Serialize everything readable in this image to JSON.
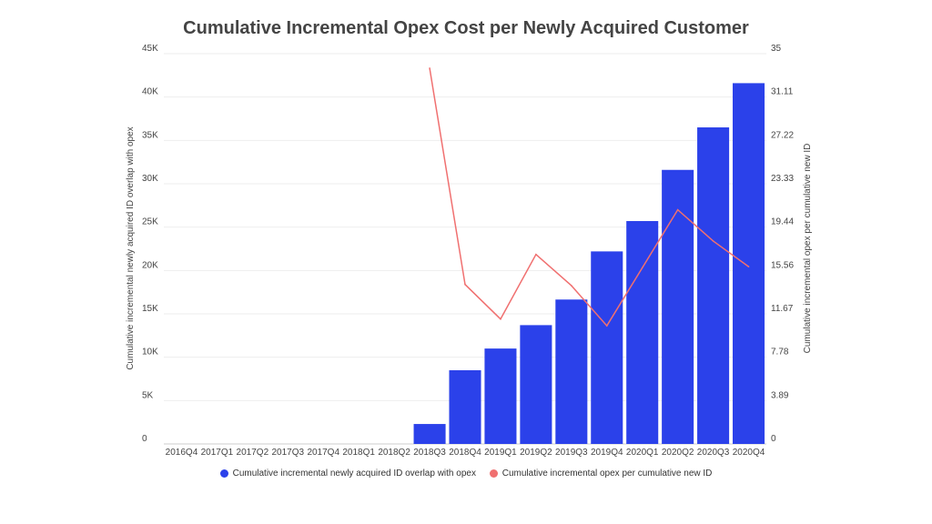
{
  "chart_data": {
    "type": "bar",
    "title": "Cumulative Incremental Opex Cost per Newly Acquired Customer",
    "categories": [
      "2016Q4",
      "2017Q1",
      "2017Q2",
      "2017Q3",
      "2017Q4",
      "2018Q1",
      "2018Q2",
      "2018Q3",
      "2018Q4",
      "2019Q1",
      "2019Q2",
      "2019Q3",
      "2019Q4",
      "2020Q1",
      "2020Q2",
      "2020Q3",
      "2020Q4"
    ],
    "series": [
      {
        "name": "Cumulative incremental newly acquired ID overlap with opex",
        "type": "bar",
        "axis": "left",
        "color": "#2b41ea",
        "values": [
          null,
          null,
          null,
          null,
          null,
          null,
          null,
          2300,
          8500,
          11000,
          13700,
          16650,
          22200,
          25700,
          31600,
          36500,
          41600
        ]
      },
      {
        "name": "Cumulative incremental opex per cumulative new ID",
        "type": "line",
        "axis": "right",
        "color": "#f07070",
        "values": [
          null,
          null,
          null,
          null,
          null,
          null,
          null,
          33.7,
          14.3,
          11.2,
          17.0,
          14.2,
          10.6,
          15.8,
          21.0,
          18.2,
          15.9
        ]
      }
    ],
    "ylabel": "Cumulative incremental newly acquired ID overlap with opex",
    "y2label": "Cumulative incremental opex per cumulative new ID",
    "ylim": [
      0,
      45000
    ],
    "y2lim": [
      0,
      35
    ],
    "yticks": [
      "0",
      "5K",
      "10K",
      "15K",
      "20K",
      "25K",
      "30K",
      "35K",
      "40K",
      "45K"
    ],
    "y2ticks": [
      "0",
      "3.89",
      "7.78",
      "11.67",
      "15.56",
      "19.44",
      "23.33",
      "27.22",
      "31.11",
      "35"
    ],
    "grid": true,
    "legend": "bottom"
  }
}
